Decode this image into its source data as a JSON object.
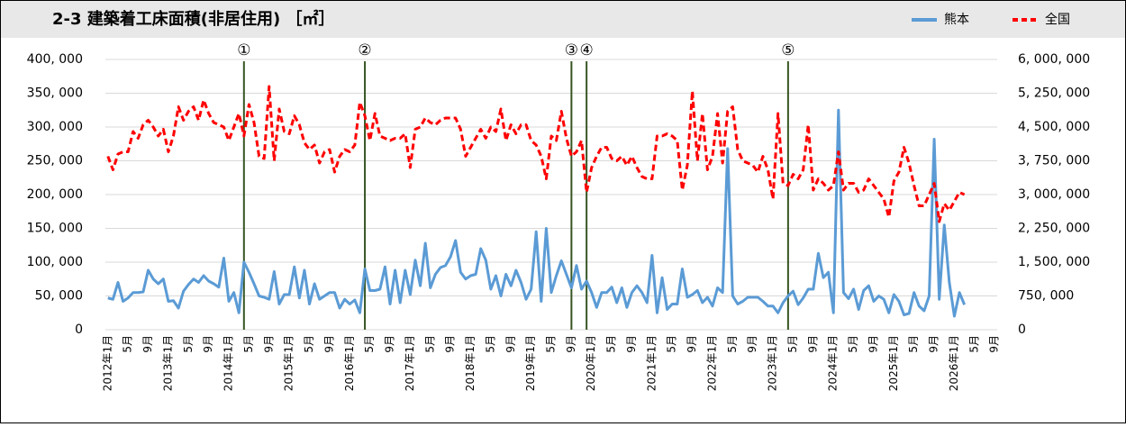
{
  "chart_data": {
    "type": "line",
    "title": "2-3 建築着工床面積(非居住用) ［㎡］",
    "legend": "top-right",
    "grid": true,
    "categories": [
      "2012年1月",
      null,
      null,
      null,
      "5月",
      null,
      null,
      null,
      "9月",
      null,
      null,
      null,
      "2013年1月",
      null,
      null,
      null,
      "5月",
      null,
      null,
      null,
      "9月",
      null,
      null,
      null,
      "2014年1月",
      null,
      null,
      null,
      "5月",
      null,
      null,
      null,
      "9月",
      null,
      null,
      null,
      "2015年1月",
      null,
      null,
      null,
      "5月",
      null,
      null,
      null,
      "9月",
      null,
      null,
      null,
      "2016年1月",
      null,
      null,
      null,
      "5月",
      null,
      null,
      null,
      "9月",
      null,
      null,
      null,
      "2017年1月",
      null,
      null,
      null,
      "5月",
      null,
      null,
      null,
      "9月",
      null,
      null,
      null,
      "2018年1月",
      null,
      null,
      null,
      "5月",
      null,
      null,
      null,
      "9月",
      null,
      null,
      null,
      "2019年1月",
      null,
      null,
      null,
      "5月",
      null,
      null,
      null,
      "9月",
      null,
      null,
      null,
      "2020年1月",
      null,
      null,
      null,
      "5月",
      null,
      null,
      null,
      "9月",
      null,
      null,
      null,
      "2021年1月",
      null,
      null,
      null,
      "5月",
      null,
      null,
      null,
      "9月",
      null,
      null,
      null,
      "2022年1月",
      null,
      null,
      null,
      "5月",
      null,
      null,
      null,
      "9月",
      null,
      null,
      null,
      "2023年1月",
      null,
      null,
      null,
      "5月",
      null,
      null,
      null,
      "9月",
      null,
      null,
      null,
      "2024年1月",
      null,
      null,
      null,
      "5月",
      null,
      null,
      null,
      "9月",
      null,
      null,
      null,
      "2025年1月",
      null,
      null,
      null,
      "5月",
      null,
      null,
      null,
      "9月",
      null,
      null,
      null,
      "2026年1月",
      null,
      null,
      null,
      "5月",
      null,
      null,
      null,
      "9月"
    ],
    "series": [
      {
        "name": "熊本",
        "color": "#5b9bd5",
        "axis": "y",
        "dash": false,
        "values": [
          47000,
          45000,
          70000,
          42000,
          47000,
          55000,
          55000,
          56000,
          88000,
          75000,
          68000,
          75000,
          42000,
          43000,
          32000,
          57000,
          67000,
          75000,
          70000,
          80000,
          72000,
          68000,
          63000,
          106000,
          42000,
          55000,
          25000,
          100000,
          85000,
          68000,
          50000,
          48000,
          45000,
          86000,
          38000,
          52000,
          52000,
          93000,
          47000,
          88000,
          38000,
          68000,
          45000,
          50000,
          55000,
          55000,
          32000,
          45000,
          38000,
          44000,
          25000,
          90000,
          58000,
          58000,
          60000,
          93000,
          38000,
          88000,
          40000,
          88000,
          52000,
          103000,
          65000,
          128000,
          62000,
          82000,
          92000,
          95000,
          108000,
          132000,
          85000,
          75000,
          80000,
          82000,
          120000,
          103000,
          60000,
          80000,
          50000,
          82000,
          65000,
          88000,
          70000,
          45000,
          60000,
          145000,
          42000,
          150000,
          55000,
          80000,
          102000,
          82000,
          62000,
          95000,
          60000,
          72000,
          55000,
          33000,
          55000,
          55000,
          63000,
          40000,
          62000,
          33000,
          55000,
          65000,
          55000,
          40000,
          110000,
          25000,
          77000,
          30000,
          38000,
          38000,
          90000,
          48000,
          52000,
          58000,
          40000,
          48000,
          35000,
          62000,
          55000,
          268000,
          50000,
          38000,
          42000,
          48000,
          48000,
          48000,
          42000,
          35000,
          35000,
          25000,
          40000,
          50000,
          57000,
          37000,
          47000,
          60000,
          60000,
          113000,
          77000,
          85000,
          25000,
          325000,
          55000,
          46000,
          60000,
          30000,
          58000,
          65000,
          42000,
          50000,
          45000,
          25000,
          52000,
          42000,
          22000,
          24000,
          55000,
          35000,
          28000,
          50000,
          282000,
          45000,
          155000,
          70000,
          20000,
          55000,
          37000,
          null,
          null,
          null,
          null,
          null,
          null
        ]
      },
      {
        "name": "全国",
        "color": "#ff0000",
        "axis": "y2",
        "dash": true,
        "values": [
          3850000,
          3550000,
          3900000,
          3950000,
          3950000,
          4400000,
          4250000,
          4550000,
          4650000,
          4500000,
          4300000,
          4450000,
          3950000,
          4300000,
          4950000,
          4650000,
          4850000,
          4950000,
          4650000,
          5100000,
          4800000,
          4600000,
          4550000,
          4500000,
          4200000,
          4500000,
          4800000,
          4300000,
          5000000,
          4600000,
          3850000,
          3800000,
          5400000,
          3750000,
          4900000,
          4400000,
          4350000,
          4750000,
          4550000,
          4150000,
          4000000,
          4100000,
          3700000,
          3950000,
          4000000,
          3500000,
          3850000,
          4000000,
          3950000,
          4100000,
          5050000,
          4750000,
          4200000,
          4800000,
          4300000,
          4250000,
          4200000,
          4250000,
          4250000,
          4350000,
          3600000,
          4450000,
          4500000,
          4700000,
          4600000,
          4550000,
          4650000,
          4700000,
          4700000,
          4700000,
          4450000,
          3850000,
          4050000,
          4250000,
          4450000,
          4250000,
          4500000,
          4400000,
          4900000,
          4200000,
          4550000,
          4350000,
          4550000,
          4550000,
          4200000,
          4100000,
          3850000,
          3350000,
          4300000,
          4200000,
          4850000,
          4250000,
          3850000,
          3950000,
          4200000,
          3050000,
          3600000,
          3850000,
          4050000,
          4050000,
          3800000,
          3750000,
          3850000,
          3650000,
          3850000,
          3600000,
          3400000,
          3350000,
          3350000,
          4300000,
          4300000,
          4350000,
          4300000,
          4200000,
          3100000,
          3650000,
          5300000,
          3750000,
          4800000,
          3550000,
          3850000,
          4800000,
          3700000,
          4850000,
          4950000,
          4000000,
          3750000,
          3700000,
          3650000,
          3500000,
          3850000,
          3550000,
          2900000,
          4800000,
          3250000,
          3200000,
          3450000,
          3350000,
          3550000,
          4550000,
          3100000,
          3350000,
          3250000,
          3100000,
          3200000,
          3950000,
          3100000,
          3250000,
          3250000,
          3050000,
          3100000,
          3350000,
          3200000,
          3050000,
          2900000,
          2500000,
          3300000,
          3500000,
          4050000,
          3700000,
          3200000,
          2750000,
          2750000,
          3000000,
          3250000,
          2400000,
          2800000,
          2650000,
          2850000,
          3050000,
          3000000,
          null,
          null,
          null,
          null,
          null,
          null
        ]
      }
    ],
    "ylim": [
      0,
      400000
    ],
    "yticks": [
      0,
      {
        "value": 50000,
        "label": "50, 000"
      },
      {
        "value": 100000,
        "label": "100, 000"
      },
      {
        "value": 150000,
        "label": "150, 000"
      },
      {
        "value": 200000,
        "label": "200, 000"
      },
      {
        "value": 250000,
        "label": "250, 000"
      },
      {
        "value": 300000,
        "label": "300, 000"
      },
      {
        "value": 350000,
        "label": "350, 000"
      },
      {
        "value": 400000,
        "label": "400, 000"
      }
    ],
    "y2lim": [
      0,
      6000000
    ],
    "y2ticks": [
      0,
      {
        "value": 750000,
        "label": "750, 000"
      },
      {
        "value": 1500000,
        "label": "1, 500, 000"
      },
      {
        "value": 2250000,
        "label": "2, 250, 000"
      },
      {
        "value": 3000000,
        "label": "3, 000, 000"
      },
      {
        "value": 3750000,
        "label": "3, 750, 000"
      },
      {
        "value": 4500000,
        "label": "4, 500, 000"
      },
      {
        "value": 5250000,
        "label": "5, 250, 000"
      },
      {
        "value": 6000000,
        "label": "6, 000, 000"
      }
    ],
    "markers": [
      {
        "label": "①",
        "index": 27
      },
      {
        "label": "②",
        "index": 51
      },
      {
        "label": "③",
        "index": 92
      },
      {
        "label": "④",
        "index": 95
      },
      {
        "label": "⑤",
        "index": 135
      }
    ]
  }
}
